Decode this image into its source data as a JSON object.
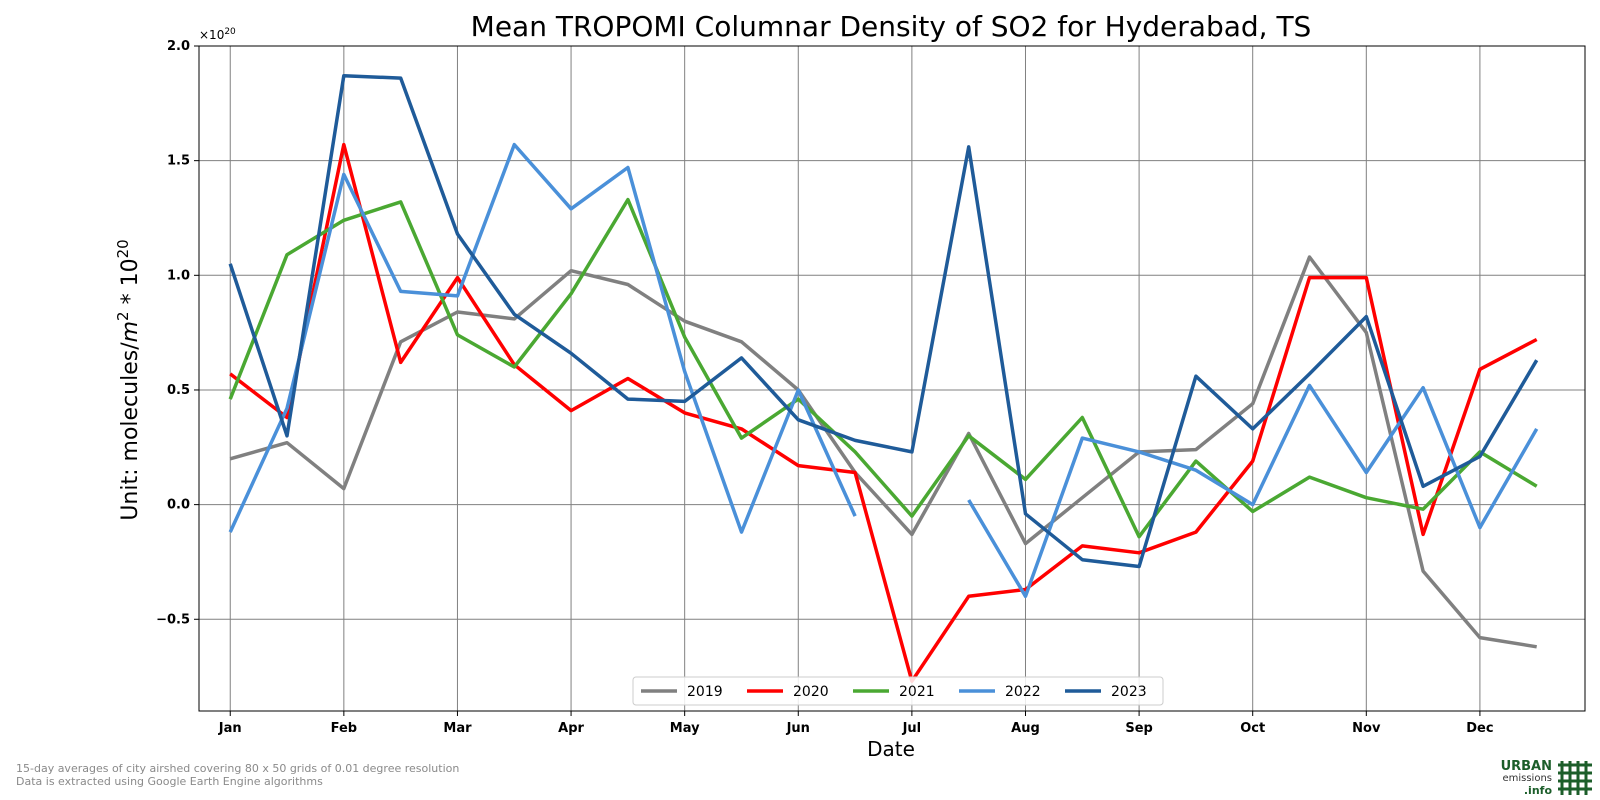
{
  "chart_data": {
    "type": "line",
    "title": "Mean TROPOMI Columnar Density of SO2 for Hyderabad, TS",
    "xlabel": "Date",
    "ylabel_main": "Unit: molecules/",
    "ylabel_m": "m",
    "ylabel_exp": "2",
    "ylabel_mid": " * 10",
    "ylabel_pow": "20",
    "offset_base": "×10",
    "offset_exp": "20",
    "ylim": [
      -0.9,
      2.0
    ],
    "yticks": [
      -0.5,
      0.0,
      0.5,
      1.0,
      1.5,
      2.0
    ],
    "ytick_labels": [
      "−0.5",
      "0.0",
      "0.5",
      "1.0",
      "1.5",
      "2.0"
    ],
    "xlim": [
      -0.55,
      23.85
    ],
    "month_labels": [
      "Jan",
      "Feb",
      "Mar",
      "Apr",
      "May",
      "Jun",
      "Jul",
      "Aug",
      "Sep",
      "Oct",
      "Nov",
      "Dec"
    ],
    "grid": true,
    "legend_position": "bottom-center",
    "series": [
      {
        "name": "2019",
        "color": "#808080",
        "values": [
          0.2,
          0.27,
          0.07,
          0.71,
          0.84,
          0.81,
          1.02,
          0.96,
          0.8,
          0.71,
          0.5,
          0.14,
          -0.13,
          0.31,
          -0.17,
          0.03,
          0.23,
          0.24,
          0.44,
          1.08,
          0.75,
          -0.29,
          -0.58,
          -0.62
        ]
      },
      {
        "name": "2020",
        "color": "#ff0000",
        "values": [
          0.57,
          0.38,
          1.57,
          0.62,
          0.99,
          0.61,
          0.41,
          0.55,
          0.4,
          0.33,
          0.17,
          0.14,
          -0.77,
          -0.4,
          -0.37,
          -0.18,
          -0.21,
          -0.12,
          0.19,
          0.99,
          0.99,
          -0.13,
          0.59,
          0.72
        ]
      },
      {
        "name": "2021",
        "color": "#4aa832",
        "values": [
          0.46,
          1.09,
          1.24,
          1.32,
          0.74,
          0.6,
          0.92,
          1.33,
          0.73,
          0.29,
          0.46,
          0.23,
          -0.05,
          0.3,
          0.11,
          0.38,
          -0.14,
          0.19,
          -0.03,
          0.12,
          0.03,
          -0.02,
          0.23,
          0.08
        ]
      },
      {
        "name": "2022",
        "color": "#4a90d9",
        "values": [
          -0.12,
          0.42,
          1.44,
          0.93,
          0.91,
          1.57,
          1.29,
          1.47,
          0.58,
          -0.12,
          0.5,
          -0.05,
          null,
          0.02,
          -0.4,
          0.29,
          0.23,
          0.15,
          0.0,
          0.52,
          0.14,
          0.51,
          -0.1,
          0.33
        ]
      },
      {
        "name": "2023",
        "color": "#1f5b99",
        "values": [
          1.05,
          0.3,
          1.87,
          1.86,
          1.18,
          0.83,
          0.66,
          0.46,
          0.45,
          0.64,
          0.37,
          0.28,
          0.23,
          1.56,
          -0.04,
          -0.24,
          -0.27,
          0.56,
          0.33,
          0.57,
          0.82,
          0.08,
          0.21,
          0.63
        ]
      }
    ]
  },
  "footnotes": {
    "line1": "15-day averages of city airshed covering 80 x 50 grids of 0.01 degree resolution",
    "line2": "Data is extracted using Google Earth Engine algorithms"
  },
  "logo": {
    "line1": "URBAN",
    "line2": "emissions",
    "line3": ".info",
    "color": "#1c5e2a"
  }
}
